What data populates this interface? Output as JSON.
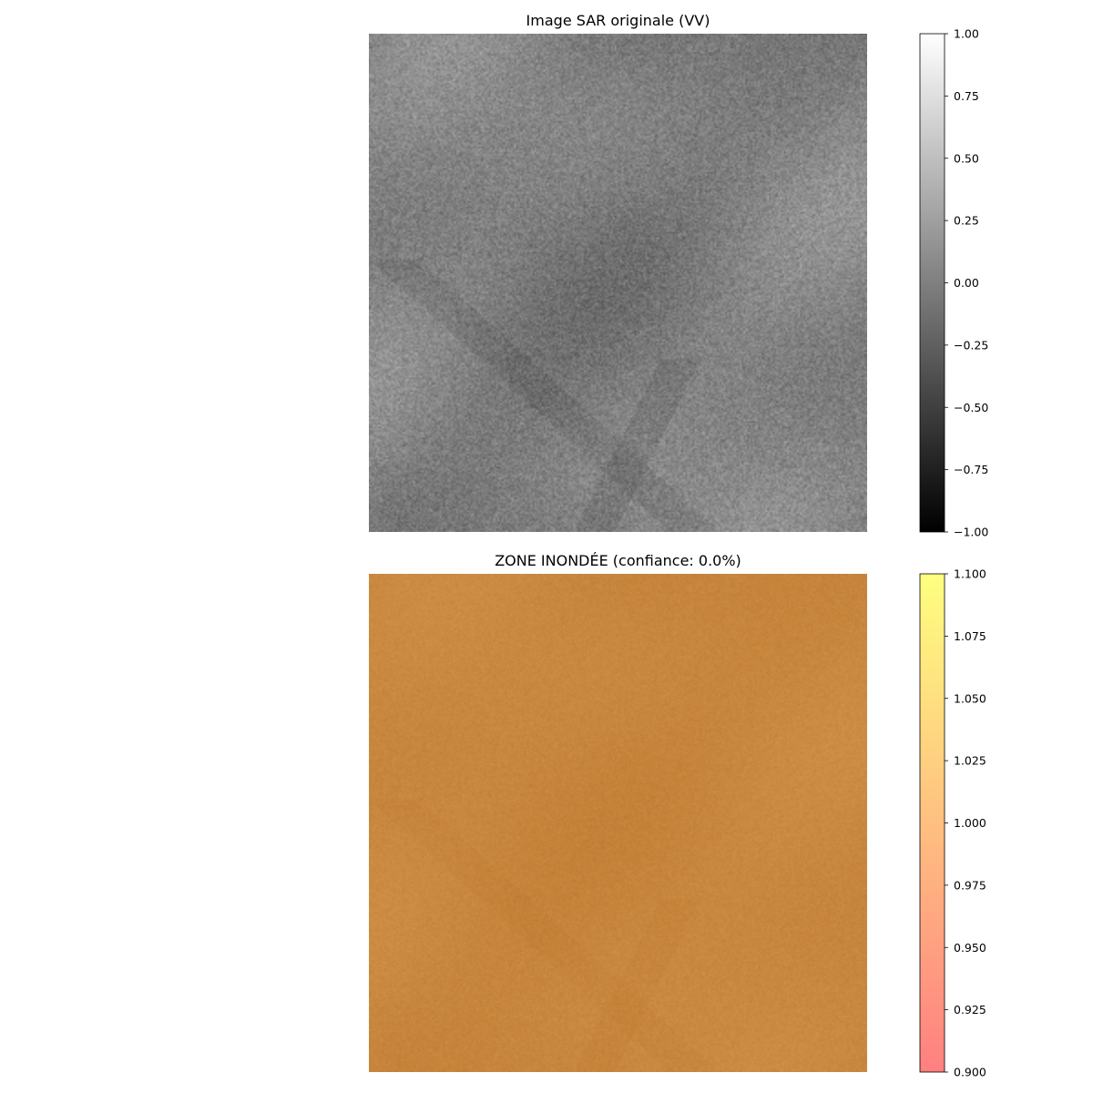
{
  "chart_data": [
    {
      "type": "heatmap",
      "title": "Image SAR originale (VV)",
      "colormap": "gray",
      "colorbar": {
        "vmin": -1.0,
        "vmax": 1.0,
        "ticks": [
          -1.0,
          -0.75,
          -0.5,
          -0.25,
          0.0,
          0.25,
          0.5,
          0.75,
          1.0
        ],
        "tick_labels": [
          "−1.00",
          "−0.75",
          "−0.50",
          "−0.25",
          "0.00",
          "0.25",
          "0.50",
          "0.75",
          "1.00"
        ],
        "colors": [
          "#000000",
          "#ffffff"
        ]
      },
      "axes": "off"
    },
    {
      "type": "heatmap",
      "title": "ZONE INONDÉE (confiance: 0.0%)",
      "colormap": "autumn",
      "alpha": 0.5,
      "colorbar": {
        "vmin": 0.9,
        "vmax": 1.1,
        "ticks": [
          0.9,
          0.925,
          0.95,
          0.975,
          1.0,
          1.025,
          1.05,
          1.075,
          1.1
        ],
        "tick_labels": [
          "0.900",
          "0.925",
          "0.950",
          "0.975",
          "1.000",
          "1.025",
          "1.050",
          "1.075",
          "1.100"
        ],
        "colors": [
          "#ff8080",
          "#ffff80"
        ]
      },
      "axes": "off"
    }
  ]
}
